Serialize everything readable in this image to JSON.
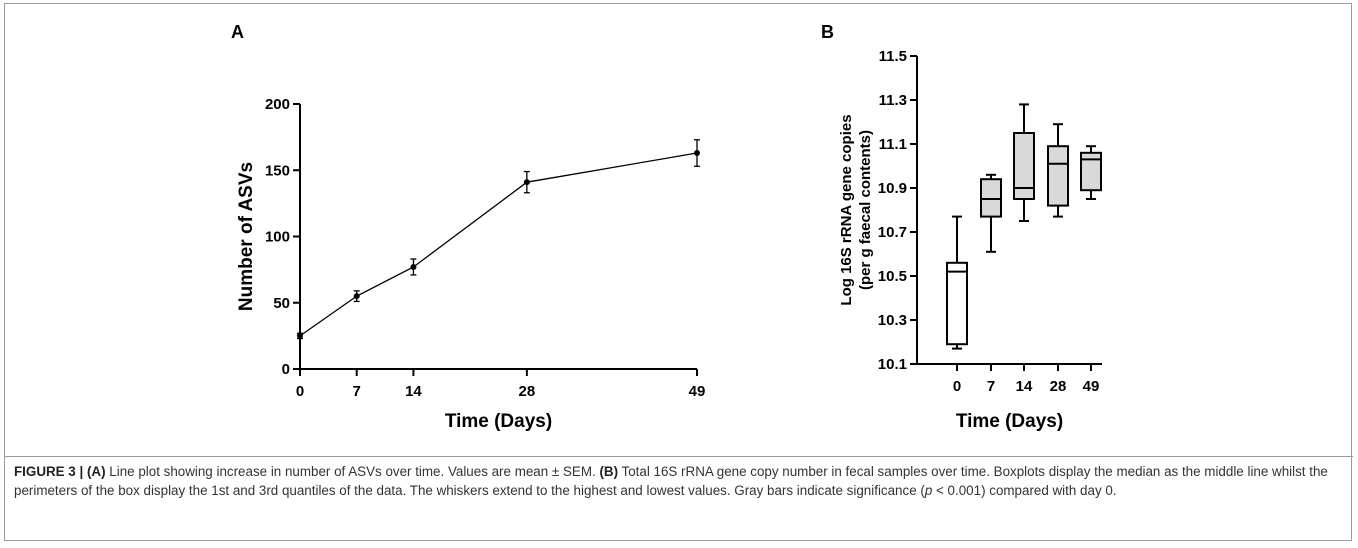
{
  "chart_data": [
    {
      "panel": "A",
      "type": "line",
      "xlabel": "Time (Days)",
      "ylabel": "Number of ASVs",
      "x": [
        0,
        7,
        14,
        28,
        49
      ],
      "y": [
        25,
        55,
        77,
        141,
        163
      ],
      "err": [
        2,
        4,
        6,
        8,
        10
      ],
      "xlim": [
        0,
        49
      ],
      "ylim": [
        0,
        200
      ],
      "xticks": [
        "0",
        "7",
        "14",
        "28",
        "49"
      ],
      "yticks": [
        "0",
        "50",
        "100",
        "150",
        "200"
      ]
    },
    {
      "panel": "B",
      "type": "box",
      "xlabel": "Time (Days)",
      "ylabel": "Log 16S rRNA gene copies",
      "ylabel2": "(per g faecal contents)",
      "categories": [
        "0",
        "7",
        "14",
        "28",
        "49"
      ],
      "ylim": [
        10.1,
        11.5
      ],
      "yticks": [
        "10.1",
        "10.3",
        "10.5",
        "10.7",
        "10.9",
        "11.1",
        "11.3",
        "11.5"
      ],
      "boxes": [
        {
          "min": 10.17,
          "q1": 10.19,
          "median": 10.52,
          "q3": 10.56,
          "max": 10.77,
          "fill": "#ffffff"
        },
        {
          "min": 10.61,
          "q1": 10.77,
          "median": 10.85,
          "q3": 10.94,
          "max": 10.96,
          "fill": "#d9d9d9"
        },
        {
          "min": 10.75,
          "q1": 10.85,
          "median": 10.9,
          "q3": 11.15,
          "max": 11.28,
          "fill": "#d9d9d9"
        },
        {
          "min": 10.77,
          "q1": 10.82,
          "median": 11.01,
          "q3": 11.09,
          "max": 11.19,
          "fill": "#d9d9d9"
        },
        {
          "min": 10.85,
          "q1": 10.89,
          "median": 11.03,
          "q3": 11.06,
          "max": 11.09,
          "fill": "#d9d9d9"
        }
      ]
    }
  ],
  "panels": {
    "a": "A",
    "b": "B"
  },
  "caption": {
    "fig_label": "FIGURE 3 |",
    "a_label": "(A)",
    "a_text": " Line plot showing increase in number of ASVs over time. Values are mean ± SEM. ",
    "b_label": "(B)",
    "b_text_1": " Total 16S rRNA gene copy number in fecal samples over time. Boxplots display the median as the middle line whilst the perimeters of the box display the 1st and 3rd quantiles of the data. The whiskers extend to the highest and lowest values. Gray bars indicate significance (",
    "p_symbol": "p",
    "b_text_2": " < 0.001) compared with day 0."
  }
}
